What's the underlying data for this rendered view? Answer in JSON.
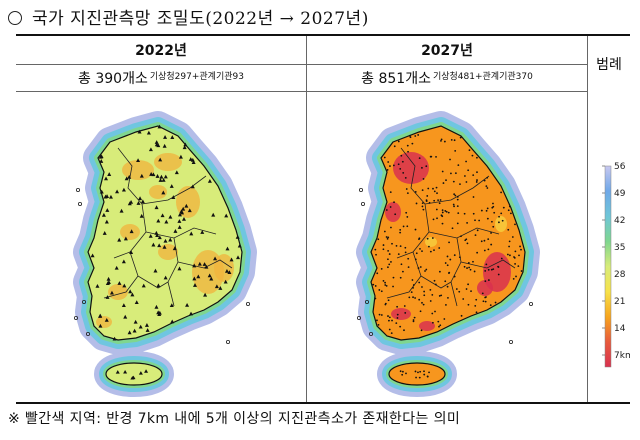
{
  "title": "국가 지진관측망 조밀도(2022년 → 2027년)",
  "columns": [
    {
      "year": "2022년",
      "total": "총 390개소",
      "breakdown": "기상청297+관계기관93"
    },
    {
      "year": "2027년",
      "total": "총 851개소",
      "breakdown": "기상청481+관계기관370"
    }
  ],
  "legend": {
    "title": "범례",
    "ticks": [
      "56",
      "49",
      "42",
      "35",
      "28",
      "21",
      "14",
      "7km"
    ],
    "colors": [
      "#c8c8f0",
      "#6fa8e8",
      "#6fc6d8",
      "#7fd68f",
      "#d8ec7a",
      "#f7e24a",
      "#f7a51e",
      "#e85a3c",
      "#d9314f"
    ]
  },
  "map_colors": {
    "sea_halo_outer": "#b4bde8",
    "sea_halo_inner": "#6fc6e0",
    "coast_band": "#7fd68f",
    "land_2022": "#d8ec7a",
    "patch_2022": "#f2b33c",
    "land_2027": "#f7961e",
    "patch_2027": "#d9314f",
    "station": "#111111"
  },
  "note": "※ 빨간색 지역: 반경 7km 내에 5개 이상의 지진관측소가 존재한다는 의미"
}
